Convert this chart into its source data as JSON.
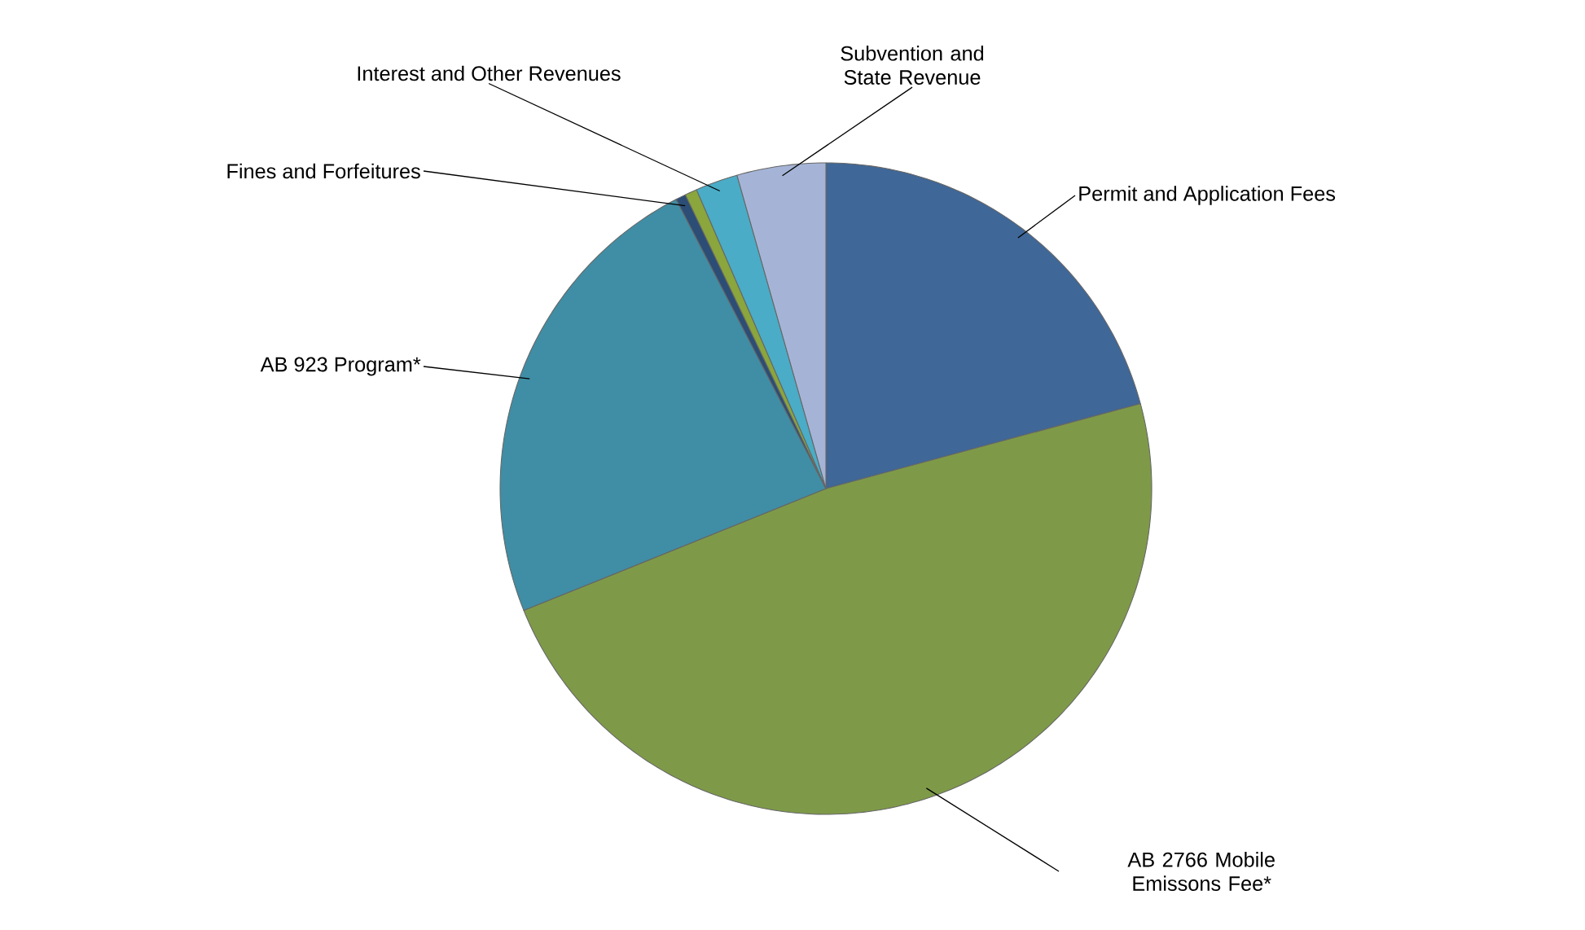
{
  "chart_data": {
    "type": "pie",
    "categories": [
      "Permit and Application Fees",
      "AB 2766 Mobile Emissons Fee*",
      "AB 923 Program*",
      "Fines and Forfeitures",
      null,
      "Interest and Other Revenues",
      "Subvention and State Revenue"
    ],
    "values": [
      20.8,
      48.1,
      23.5,
      0.5,
      0.6,
      2.1,
      4.4
    ],
    "colors": [
      "#3f6797",
      "#7e9a48",
      "#3f8ea5",
      "#2c4d75",
      "#8aa63c",
      "#4aacc6",
      "#a5b4d6"
    ]
  }
}
